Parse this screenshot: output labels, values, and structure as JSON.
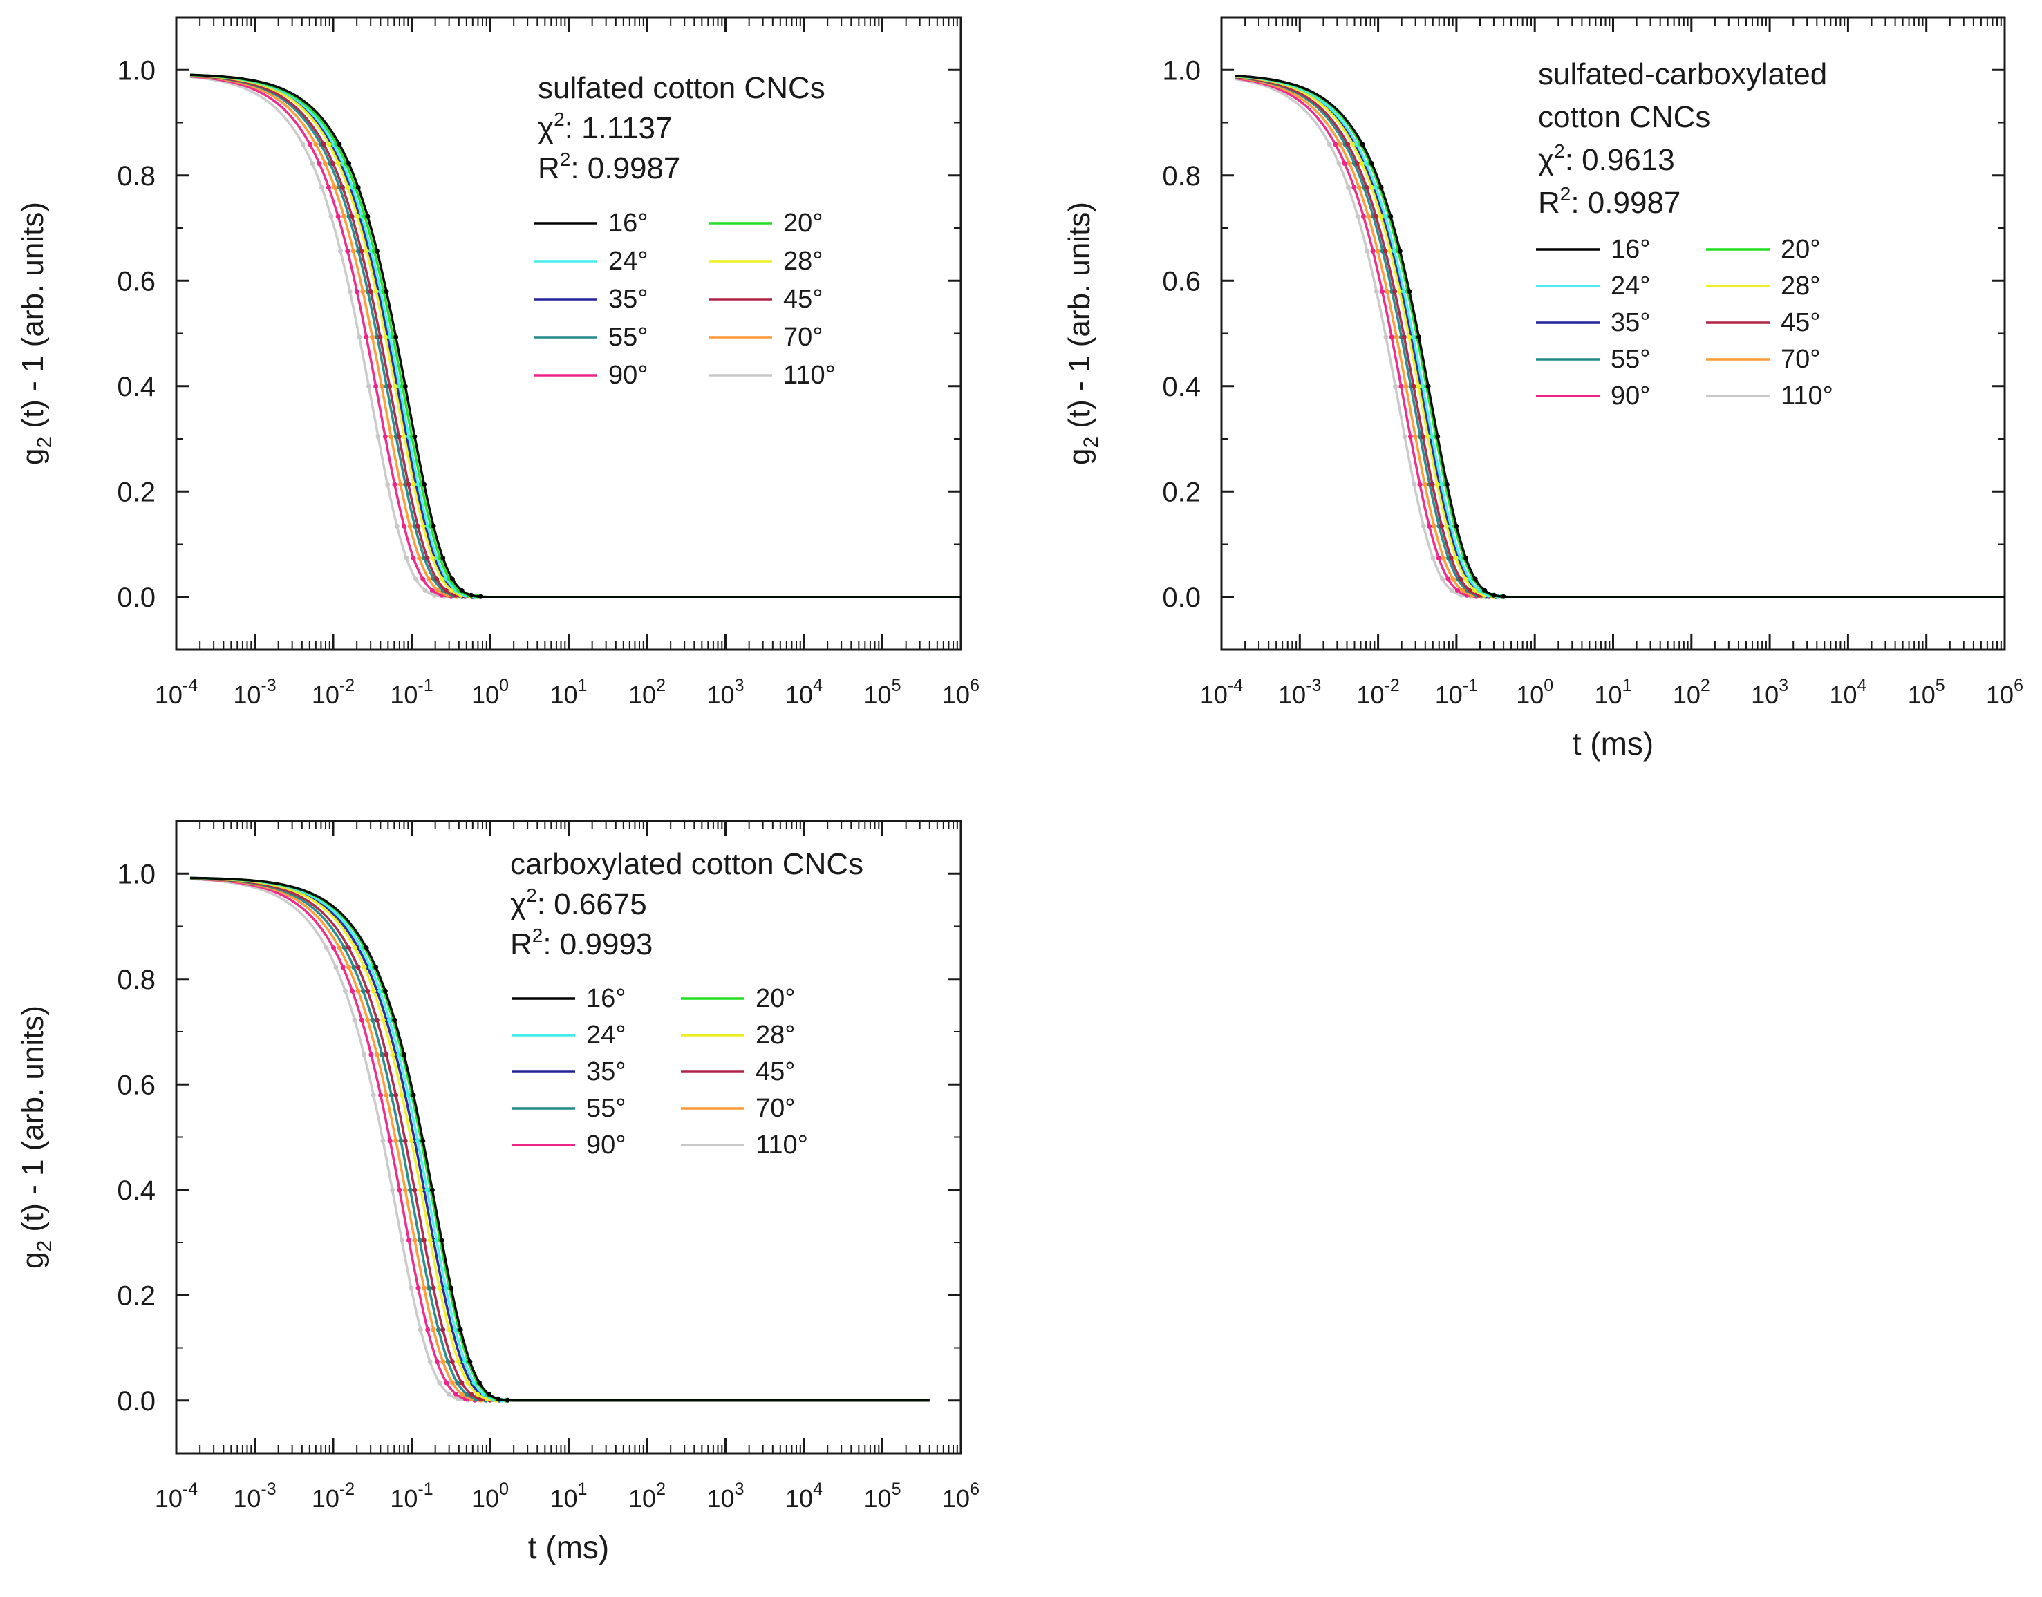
{
  "figure": {
    "legend_angles": [
      "16°",
      "20°",
      "24°",
      "28°",
      "35°",
      "45°",
      "55°",
      "70°",
      "90°",
      "110°"
    ],
    "legend_colors": [
      "#000000",
      "#22dd22",
      "#44eeee",
      "#eeee22",
      "#222299",
      "#b02244",
      "#228888",
      "#ff9933",
      "#ee2288",
      "#c8c8c8"
    ]
  },
  "chart_data": [
    {
      "type": "line",
      "panel": "top-left",
      "title": "sulfated cotton CNCs",
      "chi2_label": "χ",
      "chi2_sup": "2",
      "chi2_value": ": 1.1137",
      "r2_label": "R",
      "r2_sup": "2",
      "r2_value": ": 0.9987",
      "ylabel": "g2 (t) - 1 (arb. units)",
      "xlabel": "",
      "xscale": "log",
      "xlim": [
        0.0001,
        1000000
      ],
      "ylim": [
        -0.1,
        1.1
      ],
      "x_tick_exponents": [
        "-4",
        "-3",
        "-2",
        "-1",
        "0",
        "1",
        "2",
        "3",
        "4",
        "5",
        "6"
      ],
      "y_ticks": [
        "0.0",
        "0.2",
        "0.4",
        "0.6",
        "0.8",
        "1.0"
      ],
      "legend_position": "top-right",
      "series": [
        {
          "name": "16°",
          "color": "#000000",
          "tau_ms": 0.19,
          "x_end": 1000000
        },
        {
          "name": "20°",
          "color": "#22dd22",
          "tau_ms": 0.175,
          "x_end": 1000000
        },
        {
          "name": "24°",
          "color": "#44eeee",
          "tau_ms": 0.16,
          "x_end": 1000000
        },
        {
          "name": "28°",
          "color": "#eeee22",
          "tau_ms": 0.14,
          "x_end": 1000000
        },
        {
          "name": "35°",
          "color": "#222299",
          "tau_ms": 0.15,
          "x_end": 1000000
        },
        {
          "name": "45°",
          "color": "#b02244",
          "tau_ms": 0.12,
          "x_end": 1000000
        },
        {
          "name": "55°",
          "color": "#228888",
          "tau_ms": 0.11,
          "x_end": 1000000
        },
        {
          "name": "70°",
          "color": "#ff9933",
          "tau_ms": 0.095,
          "x_end": 1000000
        },
        {
          "name": "90°",
          "color": "#ee2288",
          "tau_ms": 0.08,
          "x_end": 1000000
        },
        {
          "name": "110°",
          "color": "#c8c8c8",
          "tau_ms": 0.065,
          "x_end": 1000000
        }
      ]
    },
    {
      "type": "line",
      "panel": "top-right",
      "title": "sulfated-carboxylated",
      "title2": "cotton CNCs",
      "chi2_label": "χ",
      "chi2_sup": "2",
      "chi2_value": ": 0.9613",
      "r2_label": "R",
      "r2_sup": "2",
      "r2_value": ": 0.9987",
      "ylabel": "g2 (t) - 1 (arb. units)",
      "xlabel": "t (ms)",
      "xscale": "log",
      "xlim": [
        0.0001,
        1000000
      ],
      "ylim": [
        -0.1,
        1.1
      ],
      "x_tick_exponents": [
        "-4",
        "-3",
        "-2",
        "-1",
        "0",
        "1",
        "2",
        "3",
        "4",
        "5",
        "6"
      ],
      "y_ticks": [
        "0.0",
        "0.2",
        "0.4",
        "0.6",
        "0.8",
        "1.0"
      ],
      "legend_position": "top-right",
      "series": [
        {
          "name": "16°",
          "color": "#000000",
          "tau_ms": 0.1,
          "x_end": 1000000
        },
        {
          "name": "20°",
          "color": "#22dd22",
          "tau_ms": 0.095,
          "x_end": 1000000
        },
        {
          "name": "24°",
          "color": "#44eeee",
          "tau_ms": 0.085,
          "x_end": 1000000
        },
        {
          "name": "28°",
          "color": "#eeee22",
          "tau_ms": 0.075,
          "x_end": 1000000
        },
        {
          "name": "35°",
          "color": "#222299",
          "tau_ms": 0.08,
          "x_end": 1000000
        },
        {
          "name": "45°",
          "color": "#b02244",
          "tau_ms": 0.065,
          "x_end": 1000000
        },
        {
          "name": "55°",
          "color": "#228888",
          "tau_ms": 0.06,
          "x_end": 1000000
        },
        {
          "name": "70°",
          "color": "#ff9933",
          "tau_ms": 0.052,
          "x_end": 1000000
        },
        {
          "name": "90°",
          "color": "#ee2288",
          "tau_ms": 0.045,
          "x_end": 1000000
        },
        {
          "name": "110°",
          "color": "#c8c8c8",
          "tau_ms": 0.038,
          "x_end": 1000000
        }
      ]
    },
    {
      "type": "line",
      "panel": "bottom-left",
      "title": "carboxylated cotton CNCs",
      "chi2_label": "χ",
      "chi2_sup": "2",
      "chi2_value": ": 0.6675",
      "r2_label": "R",
      "r2_sup": "2",
      "r2_value": ": 0.9993",
      "ylabel": "g2 (t) - 1 (arb. units)",
      "xlabel": "t (ms)",
      "xscale": "log",
      "xlim": [
        0.0001,
        1000000
      ],
      "ylim": [
        -0.1,
        1.1
      ],
      "x_tick_exponents": [
        "-4",
        "-3",
        "-2",
        "-1",
        "0",
        "1",
        "2",
        "3",
        "4",
        "5",
        "6"
      ],
      "y_ticks": [
        "0.0",
        "0.2",
        "0.4",
        "0.6",
        "0.8",
        "1.0"
      ],
      "legend_position": "top-right",
      "series": [
        {
          "name": "16°",
          "color": "#000000",
          "tau_ms": 0.42,
          "x_end": 400000
        },
        {
          "name": "20°",
          "color": "#22dd22",
          "tau_ms": 0.4,
          "x_end": 400000
        },
        {
          "name": "24°",
          "color": "#44eeee",
          "tau_ms": 0.36,
          "x_end": 400000
        },
        {
          "name": "28°",
          "color": "#eeee22",
          "tau_ms": 0.3,
          "x_end": 400000
        },
        {
          "name": "35°",
          "color": "#222299",
          "tau_ms": 0.33,
          "x_end": 400000
        },
        {
          "name": "45°",
          "color": "#b02244",
          "tau_ms": 0.25,
          "x_end": 400000
        },
        {
          "name": "55°",
          "color": "#228888",
          "tau_ms": 0.22,
          "x_end": 400000
        },
        {
          "name": "70°",
          "color": "#ff9933",
          "tau_ms": 0.19,
          "x_end": 400000
        },
        {
          "name": "90°",
          "color": "#ee2288",
          "tau_ms": 0.16,
          "x_end": 400000
        },
        {
          "name": "110°",
          "color": "#c8c8c8",
          "tau_ms": 0.13,
          "x_end": 400000
        }
      ]
    }
  ]
}
